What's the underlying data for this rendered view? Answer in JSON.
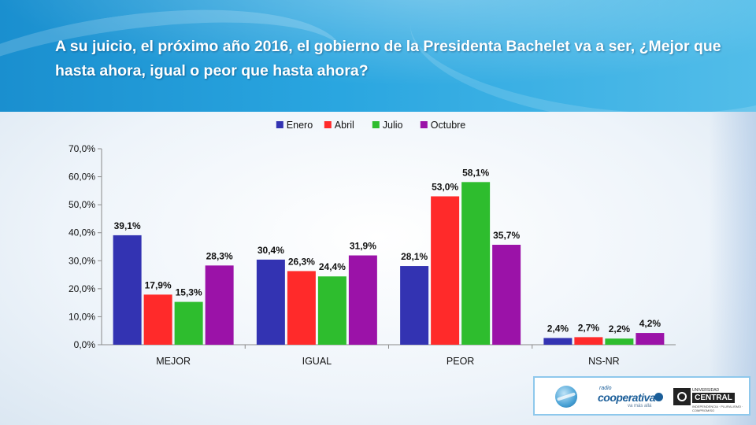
{
  "title": "A su juicio, el próximo año 2016,  el gobierno de la Presidenta Bachelet va a ser, ¿Mejor que hasta ahora, igual o  peor que hasta ahora?",
  "chart_data": {
    "type": "bar",
    "title": "",
    "categories": [
      "MEJOR",
      "IGUAL",
      "PEOR",
      "NS-NR"
    ],
    "series": [
      {
        "name": "Enero",
        "color": "#3333b2",
        "values": [
          39.1,
          30.4,
          28.1,
          2.4
        ],
        "labels": [
          "39,1%",
          "30,4%",
          "28,1%",
          "2,4%"
        ]
      },
      {
        "name": "Abril",
        "color": "#ff2a2a",
        "values": [
          17.9,
          26.3,
          53.0,
          2.7
        ],
        "labels": [
          "17,9%",
          "26,3%",
          "53,0%",
          "2,7%"
        ]
      },
      {
        "name": "Julio",
        "color": "#2ebd2e",
        "values": [
          15.3,
          24.4,
          58.1,
          2.2
        ],
        "labels": [
          "15,3%",
          "24,4%",
          "58,1%",
          "2,2%"
        ]
      },
      {
        "name": "Octubre",
        "color": "#9b12a8",
        "values": [
          28.3,
          31.9,
          35.7,
          4.2
        ],
        "labels": [
          "28,3%",
          "31,9%",
          "35,7%",
          "4,2%"
        ]
      }
    ],
    "y_ticks": [
      "0,0%",
      "10,0%",
      "20,0%",
      "30,0%",
      "40,0%",
      "50,0%",
      "60,0%",
      "70,0%"
    ],
    "ylim": [
      0,
      70
    ],
    "xlabel": "",
    "ylabel": "",
    "legend_position": "top",
    "grid": false
  },
  "logos": {
    "cooperativa_small": "radio",
    "cooperativa_name": "cooperativa",
    "cooperativa_tag": "va más allá",
    "uc_small": "UNIVERSIDAD",
    "uc_name": "CENTRAL",
    "uc_tag": "INDEPENDENCIA · PLURALISMO · COMPROMISO"
  }
}
